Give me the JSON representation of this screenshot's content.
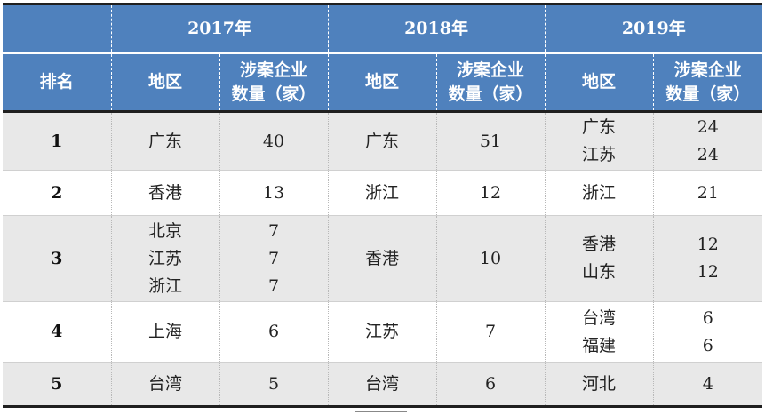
{
  "years": [
    "2017年",
    "2018年",
    "2019年"
  ],
  "headers": {
    "rank": "排名",
    "region": "地区",
    "count_line1": "涉案企业",
    "count_line2": "数量（家）"
  },
  "rows": [
    {
      "rank": "1",
      "y2017": {
        "regions": [
          "广东"
        ],
        "counts": [
          "40"
        ]
      },
      "y2018": {
        "regions": [
          "广东"
        ],
        "counts": [
          "51"
        ]
      },
      "y2019": {
        "regions": [
          "广东",
          "江苏"
        ],
        "counts": [
          "24",
          "24"
        ]
      }
    },
    {
      "rank": "2",
      "y2017": {
        "regions": [
          "香港"
        ],
        "counts": [
          "13"
        ]
      },
      "y2018": {
        "regions": [
          "浙江"
        ],
        "counts": [
          "12"
        ]
      },
      "y2019": {
        "regions": [
          "浙江"
        ],
        "counts": [
          "21"
        ]
      }
    },
    {
      "rank": "3",
      "y2017": {
        "regions": [
          "北京",
          "江苏",
          "浙江"
        ],
        "counts": [
          "7",
          "7",
          "7"
        ]
      },
      "y2018": {
        "regions": [
          "香港"
        ],
        "counts": [
          "10"
        ]
      },
      "y2019": {
        "regions": [
          "香港",
          "山东"
        ],
        "counts": [
          "12",
          "12"
        ]
      }
    },
    {
      "rank": "4",
      "y2017": {
        "regions": [
          "上海"
        ],
        "counts": [
          "6"
        ]
      },
      "y2018": {
        "regions": [
          "江苏"
        ],
        "counts": [
          "7"
        ]
      },
      "y2019": {
        "regions": [
          "台湾",
          "福建"
        ],
        "counts": [
          "6",
          "6"
        ]
      }
    },
    {
      "rank": "5",
      "y2017": {
        "regions": [
          "台湾"
        ],
        "counts": [
          "5"
        ]
      },
      "y2018": {
        "regions": [
          "台湾"
        ],
        "counts": [
          "6"
        ]
      },
      "y2019": {
        "regions": [
          "河北"
        ],
        "counts": [
          "4"
        ]
      }
    }
  ]
}
